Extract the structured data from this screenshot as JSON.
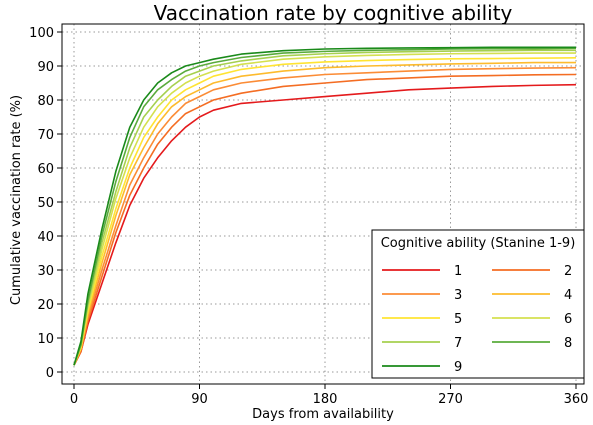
{
  "chart_data": {
    "type": "line",
    "title": "Vaccination rate by cognitive ability",
    "xlabel": "Days from availability",
    "ylabel": "Cumulative vaccination rate (%)",
    "xlim": [
      0,
      360
    ],
    "ylim": [
      0,
      100
    ],
    "xticks": [
      0,
      90,
      180,
      270,
      360
    ],
    "yticks": [
      0,
      10,
      20,
      30,
      40,
      50,
      60,
      70,
      80,
      90,
      100
    ],
    "grid": true,
    "legend_title": "Cognitive ability (Stanine 1-9)",
    "legend_placement": "bottom-right",
    "series": [
      {
        "name": "1",
        "color": "#e41a1c",
        "x": [
          0,
          5,
          10,
          20,
          30,
          40,
          50,
          60,
          70,
          80,
          90,
          100,
          120,
          150,
          180,
          210,
          240,
          270,
          300,
          330,
          360
        ],
        "y": [
          2,
          6,
          14,
          26,
          38,
          49,
          57,
          63,
          68,
          72,
          75,
          77,
          79,
          80,
          81,
          82,
          83,
          83.5,
          84,
          84.3,
          84.5
        ]
      },
      {
        "name": "2",
        "color": "#f46d23",
        "x": [
          0,
          5,
          10,
          20,
          30,
          40,
          50,
          60,
          70,
          80,
          90,
          100,
          120,
          150,
          180,
          210,
          240,
          270,
          300,
          330,
          360
        ],
        "y": [
          2,
          6,
          15,
          28,
          41,
          52,
          60,
          67,
          72,
          76,
          78,
          80,
          82,
          84,
          85,
          86,
          86.5,
          87,
          87.2,
          87.4,
          87.5
        ]
      },
      {
        "name": "3",
        "color": "#fb8c36",
        "x": [
          0,
          5,
          10,
          20,
          30,
          40,
          50,
          60,
          70,
          80,
          90,
          100,
          120,
          150,
          180,
          210,
          240,
          270,
          300,
          330,
          360
        ],
        "y": [
          2,
          7,
          16,
          30,
          43,
          55,
          63,
          70,
          75,
          79,
          81,
          83,
          85,
          86.5,
          87.5,
          88,
          88.5,
          89,
          89.2,
          89.4,
          89.5
        ]
      },
      {
        "name": "4",
        "color": "#fdbb2d",
        "x": [
          0,
          5,
          10,
          20,
          30,
          40,
          50,
          60,
          70,
          80,
          90,
          100,
          120,
          150,
          180,
          210,
          240,
          270,
          300,
          330,
          360
        ],
        "y": [
          2,
          7,
          17,
          32,
          46,
          58,
          66,
          73,
          78,
          81,
          83,
          85,
          87,
          88.5,
          89.5,
          90,
          90.3,
          90.6,
          90.8,
          91,
          91
        ]
      },
      {
        "name": "5",
        "color": "#ffe433",
        "x": [
          0,
          5,
          10,
          20,
          30,
          40,
          50,
          60,
          70,
          80,
          90,
          100,
          120,
          150,
          180,
          210,
          240,
          270,
          300,
          330,
          360
        ],
        "y": [
          2,
          7,
          18,
          34,
          48,
          60,
          69,
          75,
          80,
          83,
          85,
          87,
          89,
          90.5,
          91.2,
          91.6,
          91.9,
          92.1,
          92.2,
          92.3,
          92.4
        ]
      },
      {
        "name": "6",
        "color": "#d4e04f",
        "x": [
          0,
          5,
          10,
          20,
          30,
          40,
          50,
          60,
          70,
          80,
          90,
          100,
          120,
          150,
          180,
          210,
          240,
          270,
          300,
          330,
          360
        ],
        "y": [
          2,
          8,
          19,
          36,
          51,
          63,
          72,
          78,
          82,
          85,
          87,
          88.5,
          90.5,
          92,
          92.7,
          93.1,
          93.4,
          93.6,
          93.7,
          93.8,
          93.8
        ]
      },
      {
        "name": "7",
        "color": "#a6d04f",
        "x": [
          0,
          5,
          10,
          20,
          30,
          40,
          50,
          60,
          70,
          80,
          90,
          100,
          120,
          150,
          180,
          210,
          240,
          270,
          300,
          330,
          360
        ],
        "y": [
          2,
          8,
          20,
          38,
          53,
          66,
          75,
          80,
          84,
          87,
          88.5,
          90,
          91.5,
          93,
          93.6,
          94,
          94.2,
          94.4,
          94.5,
          94.6,
          94.6
        ]
      },
      {
        "name": "8",
        "color": "#5aab3c",
        "x": [
          0,
          5,
          10,
          20,
          30,
          40,
          50,
          60,
          70,
          80,
          90,
          100,
          120,
          150,
          180,
          210,
          240,
          270,
          300,
          330,
          360
        ],
        "y": [
          2,
          8,
          21,
          40,
          56,
          69,
          78,
          83,
          86,
          88.5,
          90,
          91,
          92.5,
          93.8,
          94.3,
          94.6,
          94.8,
          95,
          95.1,
          95.1,
          95.2
        ]
      },
      {
        "name": "9",
        "color": "#1a8a1a",
        "x": [
          0,
          5,
          10,
          20,
          30,
          40,
          50,
          60,
          70,
          80,
          90,
          100,
          120,
          150,
          180,
          210,
          240,
          270,
          300,
          330,
          360
        ],
        "y": [
          2,
          9,
          23,
          42,
          59,
          72,
          80,
          85,
          88,
          90,
          91,
          92,
          93.5,
          94.5,
          95,
          95.2,
          95.3,
          95.4,
          95.5,
          95.5,
          95.5
        ]
      }
    ]
  }
}
